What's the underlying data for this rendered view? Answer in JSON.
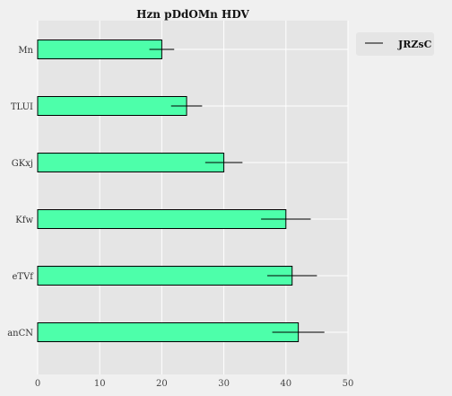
{
  "chart_data": {
    "type": "bar",
    "orientation": "horizontal",
    "title": "Hzn pDdOMn HDV",
    "xlabel": "",
    "ylabel": "",
    "categories": [
      "Mn",
      "TLUI",
      "GKxj",
      "Kfw",
      "eTVf",
      "anCN"
    ],
    "series": [
      {
        "name": "JRZsC",
        "values": [
          20.0,
          24.0,
          30.0,
          40.0,
          41.0,
          42.0
        ],
        "errors": [
          2.0,
          2.5,
          3.0,
          4.0,
          4.0,
          4.2
        ]
      }
    ],
    "xlim": [
      0,
      50
    ],
    "xticks": [
      0,
      10,
      20,
      30,
      40,
      50
    ],
    "grid": true,
    "legend_position": "top-right, outside plot",
    "colors": {
      "bar_fill": "#4dffaa",
      "bar_edge": "#000000",
      "errorbar": "#000000",
      "plot_background": "#e5e5e5",
      "figure_background": "#f0f0f0",
      "grid": "#ffffff"
    }
  }
}
